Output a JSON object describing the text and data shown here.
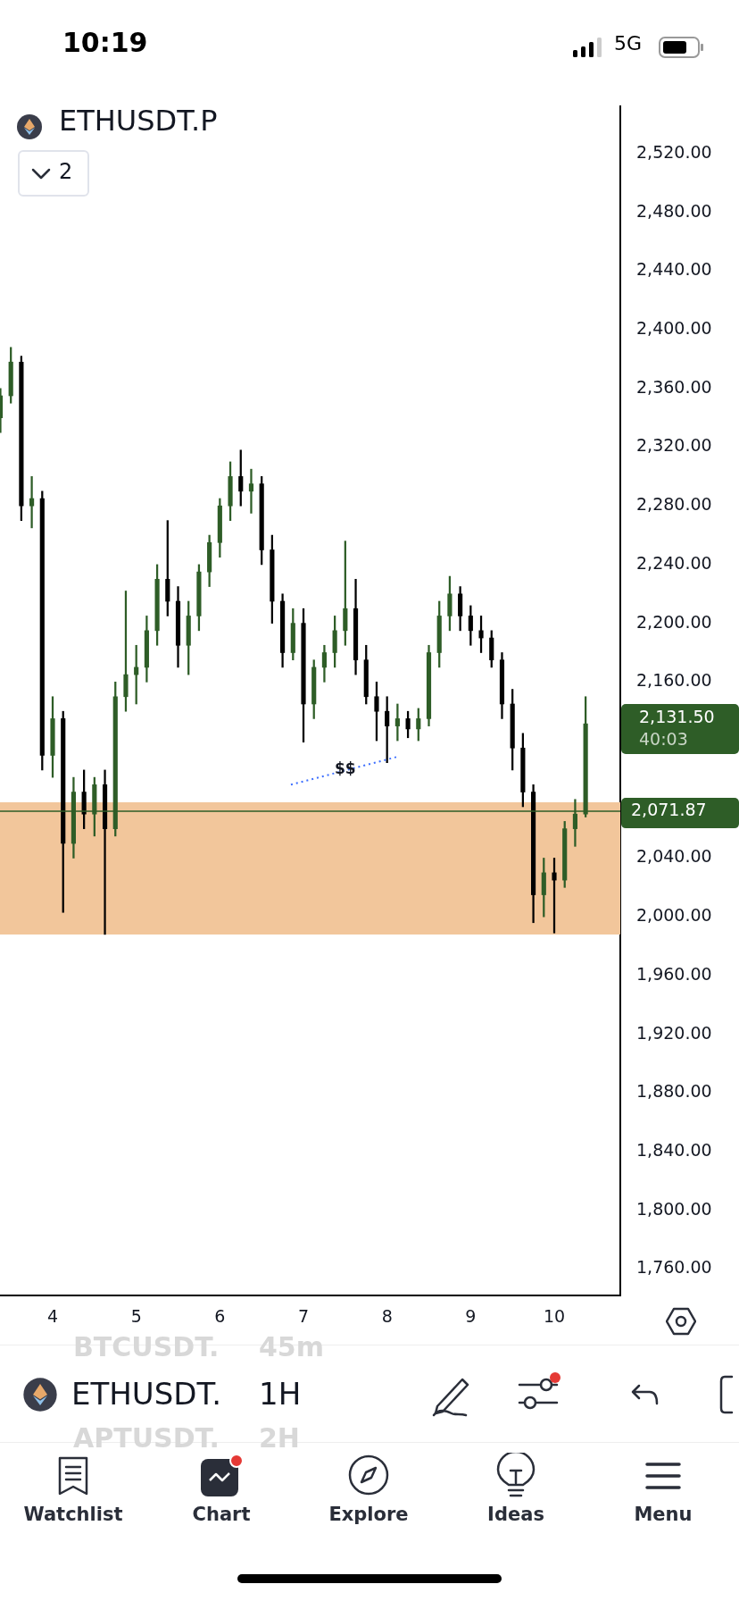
{
  "chart_data": {
    "type": "candlestick",
    "title": "ETHUSDT.P",
    "x": [
      3.375,
      3.5,
      3.625,
      3.75,
      3.875,
      4.0,
      4.125,
      4.25,
      4.375,
      4.5,
      4.625,
      4.75,
      4.875,
      5.0,
      5.125,
      5.25,
      5.375,
      5.5,
      5.625,
      5.75,
      5.875,
      6.0,
      6.125,
      6.25,
      6.375,
      6.5,
      6.625,
      6.75,
      6.875,
      7.0,
      7.125,
      7.25,
      7.375,
      7.5,
      7.625,
      7.75,
      7.875,
      8.0,
      8.125,
      8.25,
      8.375,
      8.5,
      8.625,
      8.75,
      8.875,
      9.0,
      9.125,
      9.25,
      9.375,
      9.5,
      9.625,
      9.75,
      9.875,
      10.0,
      10.125,
      10.25,
      10.375
    ],
    "ohlc": [
      [
        2340,
        2360,
        2330,
        2355
      ],
      [
        2355,
        2388,
        2350,
        2378
      ],
      [
        2378,
        2382,
        2270,
        2280
      ],
      [
        2280,
        2300,
        2265,
        2285
      ],
      [
        2285,
        2290,
        2100,
        2110
      ],
      [
        2110,
        2150,
        2095,
        2135
      ],
      [
        2135,
        2140,
        2003,
        2050
      ],
      [
        2050,
        2095,
        2040,
        2085
      ],
      [
        2085,
        2100,
        2060,
        2070
      ],
      [
        2070,
        2095,
        2055,
        2090
      ],
      [
        2090,
        2100,
        1988,
        2060
      ],
      [
        2060,
        2160,
        2055,
        2150
      ],
      [
        2150,
        2222,
        2140,
        2165
      ],
      [
        2165,
        2185,
        2145,
        2170
      ],
      [
        2170,
        2205,
        2160,
        2195
      ],
      [
        2195,
        2240,
        2185,
        2230
      ],
      [
        2230,
        2270,
        2205,
        2215
      ],
      [
        2215,
        2225,
        2170,
        2185
      ],
      [
        2185,
        2215,
        2165,
        2205
      ],
      [
        2205,
        2240,
        2195,
        2235
      ],
      [
        2235,
        2260,
        2225,
        2255
      ],
      [
        2255,
        2285,
        2245,
        2280
      ],
      [
        2280,
        2310,
        2270,
        2300
      ],
      [
        2300,
        2318,
        2280,
        2290
      ],
      [
        2290,
        2305,
        2275,
        2295
      ],
      [
        2295,
        2300,
        2240,
        2250
      ],
      [
        2250,
        2260,
        2200,
        2215
      ],
      [
        2215,
        2220,
        2170,
        2180
      ],
      [
        2180,
        2210,
        2175,
        2200
      ],
      [
        2200,
        2210,
        2119,
        2145
      ],
      [
        2145,
        2175,
        2135,
        2170
      ],
      [
        2170,
        2185,
        2160,
        2180
      ],
      [
        2180,
        2205,
        2170,
        2195
      ],
      [
        2195,
        2256,
        2185,
        2210
      ],
      [
        2210,
        2230,
        2165,
        2175
      ],
      [
        2175,
        2185,
        2145,
        2150
      ],
      [
        2150,
        2160,
        2120,
        2140
      ],
      [
        2140,
        2150,
        2105,
        2130
      ],
      [
        2130,
        2145,
        2120,
        2135
      ],
      [
        2135,
        2140,
        2122,
        2128
      ],
      [
        2128,
        2142,
        2120,
        2135
      ],
      [
        2135,
        2185,
        2130,
        2180
      ],
      [
        2180,
        2215,
        2170,
        2205
      ],
      [
        2205,
        2232,
        2195,
        2220
      ],
      [
        2220,
        2225,
        2195,
        2205
      ],
      [
        2205,
        2212,
        2185,
        2195
      ],
      [
        2195,
        2205,
        2180,
        2190
      ],
      [
        2190,
        2195,
        2170,
        2175
      ],
      [
        2175,
        2180,
        2135,
        2145
      ],
      [
        2145,
        2155,
        2100,
        2115
      ],
      [
        2115,
        2125,
        2075,
        2085
      ],
      [
        2085,
        2090,
        1996,
        2015
      ],
      [
        2015,
        2040,
        2000,
        2030
      ],
      [
        2030,
        2040,
        1989,
        2025
      ],
      [
        2025,
        2065,
        2020,
        2060
      ],
      [
        2060,
        2080,
        2048,
        2070
      ],
      [
        2070,
        2150,
        2068,
        2131.5
      ]
    ],
    "colors": [
      "#2e5d27",
      "#2e5d27",
      "#000000",
      "#2e5d27",
      "#000000",
      "#2e5d27",
      "#000000",
      "#2e5d27",
      "#000000",
      "#2e5d27",
      "#000000",
      "#2e5d27",
      "#2e5d27",
      "#2e5d27",
      "#2e5d27",
      "#2e5d27",
      "#000000",
      "#000000",
      "#2e5d27",
      "#2e5d27",
      "#2e5d27",
      "#2e5d27",
      "#2e5d27",
      "#000000",
      "#2e5d27",
      "#000000",
      "#000000",
      "#000000",
      "#2e5d27",
      "#000000",
      "#2e5d27",
      "#2e5d27",
      "#2e5d27",
      "#2e5d27",
      "#000000",
      "#000000",
      "#000000",
      "#000000",
      "#2e5d27",
      "#000000",
      "#2e5d27",
      "#2e5d27",
      "#2e5d27",
      "#2e5d27",
      "#000000",
      "#000000",
      "#000000",
      "#000000",
      "#000000",
      "#000000",
      "#000000",
      "#000000",
      "#2e5d27",
      "#000000",
      "#2e5d27",
      "#2e5d27",
      "#2e5d27"
    ],
    "series": [
      {
        "type": "line",
        "x": [
          6.85,
          8.12
        ],
        "values": [
          2090,
          2109
        ],
        "color": "#3d6fff",
        "line_style": "dotted",
        "marker": "none"
      }
    ],
    "xlim": [
      3.37,
      10.79
    ],
    "xticks": [
      4,
      5,
      6,
      7,
      8,
      9,
      10
    ],
    "ylim": [
      1742,
      2552
    ],
    "yticks": [
      {
        "value": 1760,
        "label": "1,760.00"
      },
      {
        "value": 1800,
        "label": "1,800.00"
      },
      {
        "value": 1840,
        "label": "1,840.00"
      },
      {
        "value": 1880,
        "label": "1,880.00"
      },
      {
        "value": 1920,
        "label": "1,920.00"
      },
      {
        "value": 1960,
        "label": "1,960.00"
      },
      {
        "value": 2000,
        "label": "2,000.00"
      },
      {
        "value": 2040,
        "label": "2,040.00"
      },
      {
        "value": 2160,
        "label": "2,160.00"
      },
      {
        "value": 2200,
        "label": "2,200.00"
      },
      {
        "value": 2240,
        "label": "2,240.00"
      },
      {
        "value": 2280,
        "label": "2,280.00"
      },
      {
        "value": 2320,
        "label": "2,320.00"
      },
      {
        "value": 2360,
        "label": "2,360.00"
      },
      {
        "value": 2400,
        "label": "2,400.00"
      },
      {
        "value": 2440,
        "label": "2,440.00"
      },
      {
        "value": 2480,
        "label": "2,480.00"
      },
      {
        "value": 2520,
        "label": "2,520.00"
      }
    ],
    "bands": [
      {
        "axis": "y",
        "from": 1988,
        "to": 2078,
        "color": "#f2c69b"
      }
    ],
    "ref_lines": [
      {
        "axis": "y",
        "value": 2071.87,
        "label": "2,071.87",
        "color": "#2e5d27"
      }
    ],
    "annotations": [
      "10:19",
      "5G",
      "2",
      "ETHUSDT.",
      "1H",
      "BTCUSDT.",
      "45m",
      "APTUSDT.",
      "2H",
      "Watchlist",
      "Chart",
      "Explore",
      "Ideas",
      "Menu",
      "40:03",
      "2,131.50",
      {
        "text": "$$",
        "x": 7.5,
        "y": 2100
      }
    ],
    "grid": false,
    "legend": false
  }
}
